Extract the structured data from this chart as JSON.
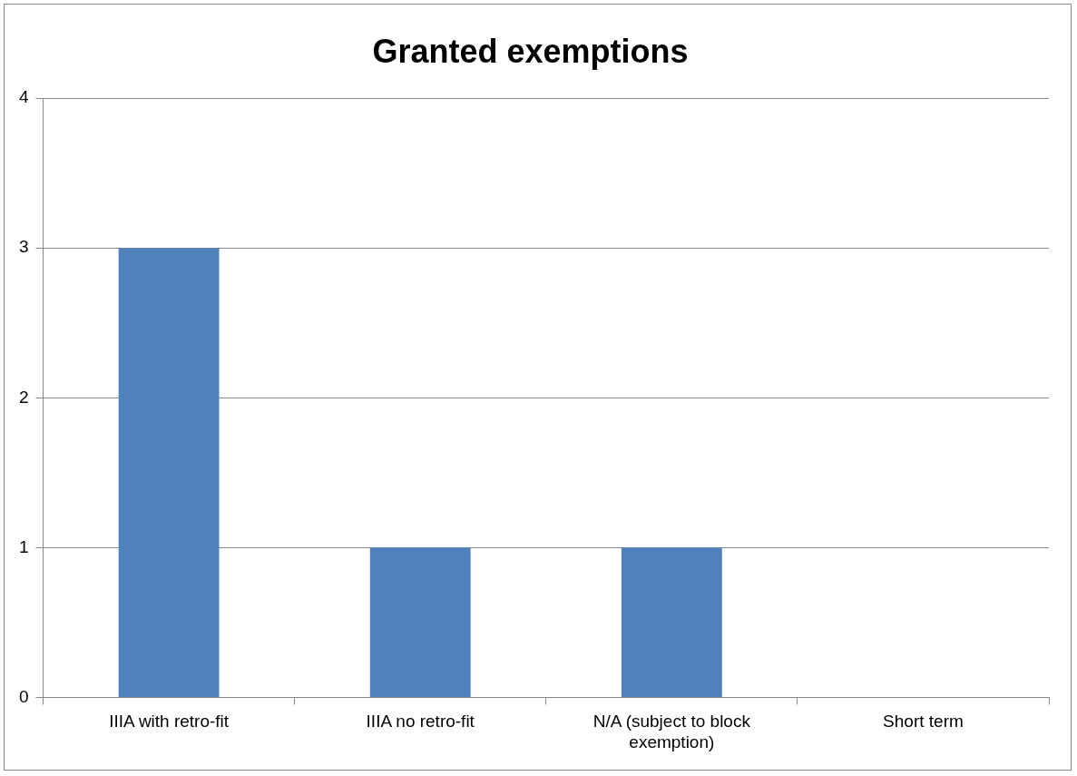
{
  "chart_data": {
    "type": "bar",
    "title": "Granted exemptions",
    "categories": [
      "IIIA with retro-fit",
      "IIIA no retro-fit",
      "N/A (subject to block exemption)",
      "Short term"
    ],
    "values": [
      3,
      1,
      1,
      0
    ],
    "color": "#4f81bd",
    "ylim": [
      0,
      4
    ],
    "yticks": [
      0,
      1,
      2,
      3,
      4
    ],
    "grid": "y",
    "legend": false
  }
}
